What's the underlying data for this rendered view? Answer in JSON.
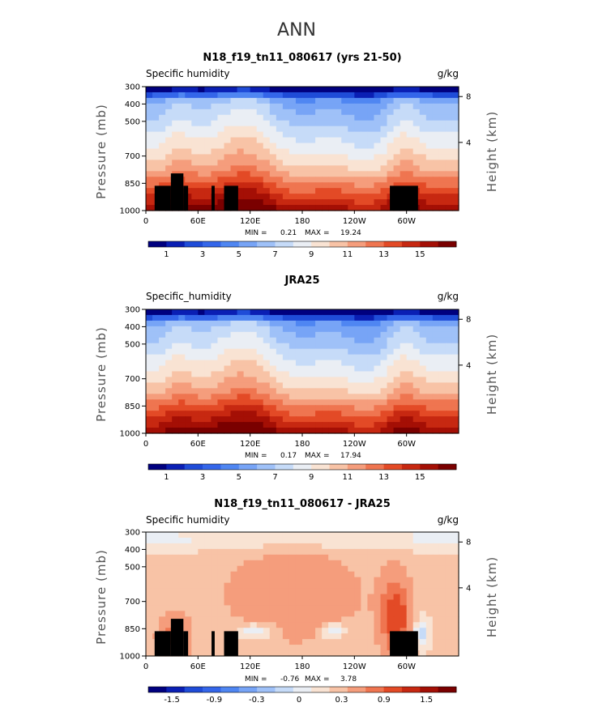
{
  "figure": {
    "title": "ANN"
  },
  "chart_data": [
    {
      "type": "heatmap",
      "title": "N18_f19_tn11_080617 (yrs 21-50)",
      "variable_label": "Specific humidity",
      "units": "g/kg",
      "ylabel": "Pressure (mb)",
      "ylabel_right": "Height (km)",
      "x_ticks": [
        "0",
        "60E",
        "120E",
        "180",
        "120W",
        "60W"
      ],
      "y_ticks": [
        "300",
        "400",
        "500",
        "700",
        "850",
        "1000"
      ],
      "height_ticks": [
        "8",
        "4"
      ],
      "min_label": "MIN =",
      "min_value": "0.21",
      "max_label": "MAX =",
      "max_value": "19.24",
      "colorbar_labels": [
        "1",
        "3",
        "5",
        "7",
        "9",
        "11",
        "13",
        "15"
      ],
      "field": {
        "kind": "abs",
        "lowland": 0.0,
        "seed": 1
      },
      "topography": true
    },
    {
      "type": "heatmap",
      "title": "JRA25",
      "variable_label": "Specific_humidity",
      "units": "g/kg",
      "ylabel": "Pressure (mb)",
      "ylabel_right": "Height (km)",
      "x_ticks": [
        "0",
        "60E",
        "120E",
        "180",
        "120W",
        "60W"
      ],
      "y_ticks": [
        "300",
        "400",
        "500",
        "700",
        "850",
        "1000"
      ],
      "height_ticks": [
        "8",
        "4"
      ],
      "min_label": "MIN =",
      "min_value": "0.17",
      "max_label": "MAX =",
      "max_value": "17.94",
      "colorbar_labels": [
        "1",
        "3",
        "5",
        "7",
        "9",
        "11",
        "13",
        "15"
      ],
      "field": {
        "kind": "abs",
        "lowland": 0.0,
        "seed": 2
      },
      "topography": false
    },
    {
      "type": "heatmap",
      "title": "N18_f19_tn11_080617 - JRA25",
      "variable_label": "Specific humidity",
      "units": "g/kg",
      "ylabel": "Pressure (mb)",
      "ylabel_right": "Height (km)",
      "x_ticks": [
        "0",
        "60E",
        "120E",
        "180",
        "120W",
        "60W"
      ],
      "y_ticks": [
        "300",
        "400",
        "500",
        "700",
        "850",
        "1000"
      ],
      "height_ticks": [
        "8",
        "4"
      ],
      "min_label": "MIN =",
      "min_value": "-0.76",
      "max_label": "MAX =",
      "max_value": "3.78",
      "colorbar_labels": [
        "-1.5",
        "-0.9",
        "-0.3",
        "0",
        "0.3",
        "0.9",
        "1.5"
      ],
      "field": {
        "kind": "diff",
        "seed": 3
      },
      "topography": true
    }
  ],
  "colormap": [
    "#00007f",
    "#0a1fb4",
    "#1f4cd8",
    "#3466ea",
    "#4f86f2",
    "#77a4f6",
    "#9fc1f8",
    "#c6dbf8",
    "#eaeef4",
    "#f9e3d3",
    "#f8c3a6",
    "#f59d7c",
    "#ef7550",
    "#e34a26",
    "#c72811",
    "#a40f05",
    "#7a0000"
  ]
}
